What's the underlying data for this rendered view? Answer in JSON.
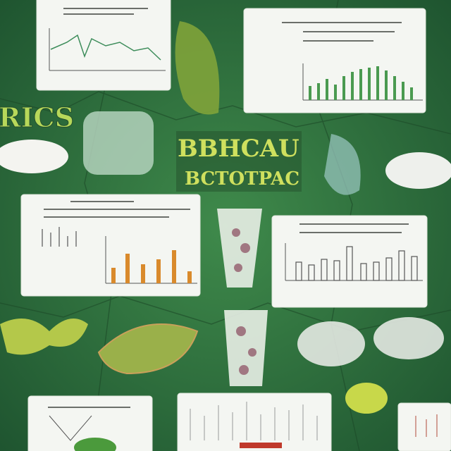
{
  "headline": {
    "left": "RICS",
    "title_line1": "BBHCAU",
    "title_line2": "BCTOTPAC"
  }
}
